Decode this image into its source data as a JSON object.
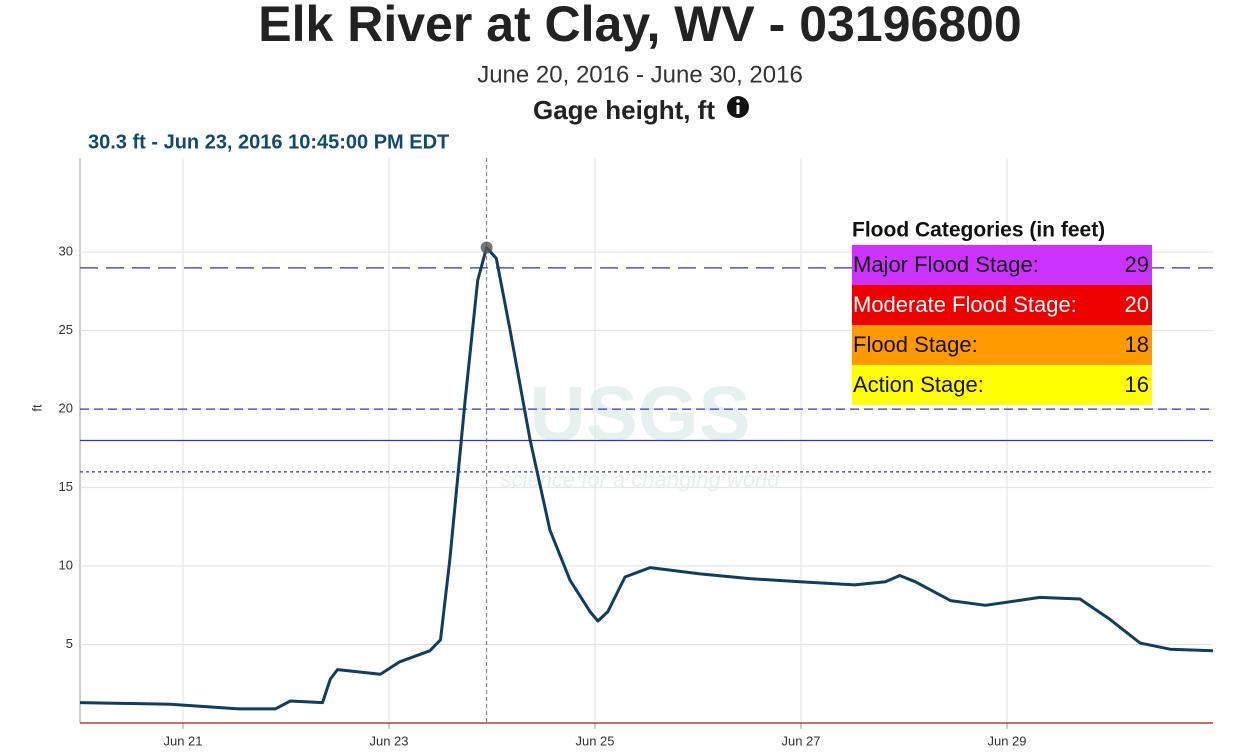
{
  "chart_data": {
    "type": "line",
    "title": "Elk River at Clay, WV - 03196800",
    "subtitle": "June 20, 2016 - June 30, 2016",
    "parameter": "Gage height, ft",
    "y_label": "ft",
    "hover": {
      "label": "30.3 ft - Jun 23, 2016 10:45:00 PM EDT",
      "x": "2016-06-23T22:45",
      "y": 30.3
    },
    "watermark": "USGS",
    "watermark_tagline": "science for a changing world",
    "xlim": [
      "2016-06-20T00:00",
      "2016-07-01T00:00"
    ],
    "xticks": [
      {
        "value": "2016-06-21T00:00",
        "label": "Jun 21"
      },
      {
        "value": "2016-06-23T00:00",
        "label": "Jun 23"
      },
      {
        "value": "2016-06-25T00:00",
        "label": "Jun 25"
      },
      {
        "value": "2016-06-27T00:00",
        "label": "Jun 27"
      },
      {
        "value": "2016-06-29T00:00",
        "label": "Jun 29"
      }
    ],
    "ylim": [
      0,
      36
    ],
    "yticks": [
      5,
      10,
      15,
      20,
      25,
      30
    ],
    "grid": true,
    "series": [
      {
        "name": "Gage height",
        "color": "#0f3f5c",
        "x": [
          "2016-06-20T00:00",
          "2016-06-20T21:00",
          "2016-06-21T13:00",
          "2016-06-21T21:30",
          "2016-06-22T01:00",
          "2016-06-22T08:30",
          "2016-06-22T10:20",
          "2016-06-22T12:00",
          "2016-06-22T22:00",
          "2016-06-23T02:30",
          "2016-06-23T09:30",
          "2016-06-23T12:00",
          "2016-06-23T14:10",
          "2016-06-23T17:45",
          "2016-06-23T20:40",
          "2016-06-23T22:45",
          "2016-06-24T01:00",
          "2016-06-24T04:10",
          "2016-06-24T08:50",
          "2016-06-24T13:30",
          "2016-06-24T18:10",
          "2016-06-24T22:50",
          "2016-06-25T00:40",
          "2016-06-25T03:00",
          "2016-06-25T07:00",
          "2016-06-25T12:50",
          "2016-06-26T00:30",
          "2016-06-26T12:00",
          "2016-06-26T23:45",
          "2016-06-27T12:30",
          "2016-06-27T19:40",
          "2016-06-27T23:00",
          "2016-06-28T02:40",
          "2016-06-28T10:50",
          "2016-06-28T19:00",
          "2016-06-29T07:40",
          "2016-06-29T17:00",
          "2016-06-30T00:00",
          "2016-06-30T07:00",
          "2016-06-30T14:00",
          "2016-07-01T00:00"
        ],
        "values": [
          1.3,
          1.2,
          0.9,
          0.9,
          1.4,
          1.3,
          2.8,
          3.4,
          3.1,
          3.9,
          4.6,
          5.3,
          10.4,
          20.6,
          28.2,
          30.3,
          29.6,
          25.1,
          18.1,
          12.3,
          9.1,
          7.1,
          6.5,
          7.1,
          9.3,
          9.9,
          9.5,
          9.2,
          9.0,
          8.8,
          9.0,
          9.4,
          9.0,
          7.8,
          7.5,
          8.0,
          7.9,
          6.6,
          5.1,
          4.7,
          4.6
        ]
      }
    ],
    "thresholds_title": "Flood Categories (in feet)",
    "thresholds": [
      {
        "name": "Major Flood Stage:",
        "value": 29,
        "color": "#cc33ff",
        "line_color": "#3333bb",
        "dash": "longdash"
      },
      {
        "name": "Moderate Flood Stage:",
        "value": 20,
        "color": "#ee0000",
        "line_color": "#3333bb",
        "dash": "dash"
      },
      {
        "name": "Flood Stage:",
        "value": 18,
        "color": "#ff9900",
        "line_color": "#3333bb",
        "dash": "solid"
      },
      {
        "name": "Action Stage:",
        "value": 16,
        "color": "#ffff00",
        "line_color": "#3333bb",
        "dash": "dot"
      }
    ]
  }
}
